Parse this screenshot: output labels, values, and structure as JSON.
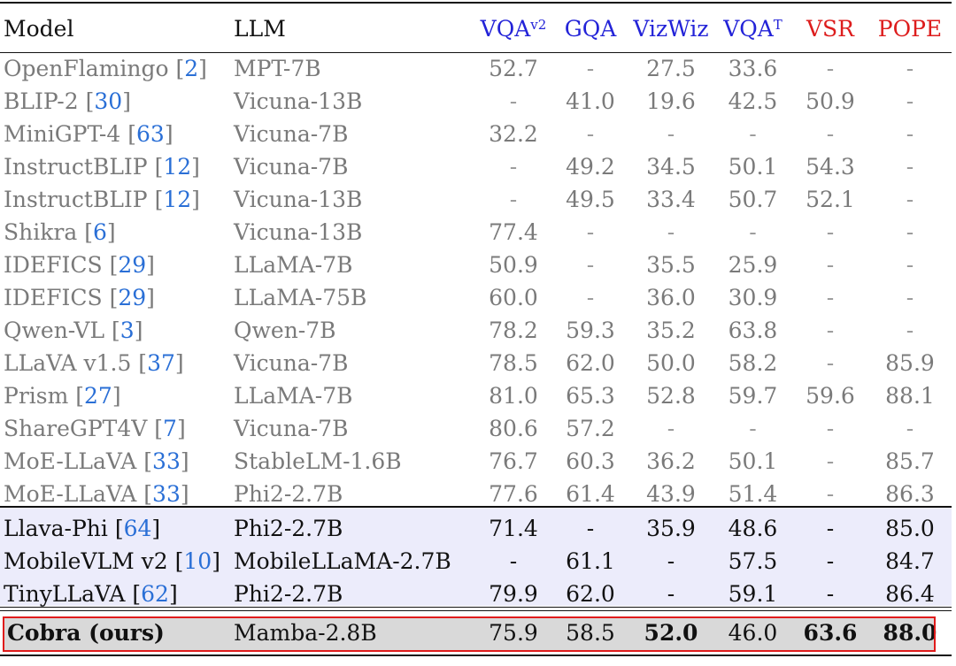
{
  "header": {
    "model": "Model",
    "llm": "LLM",
    "vqa_base": "VQA",
    "vqa_sup": "v2",
    "gqa": "GQA",
    "vizwiz": "VizWiz",
    "vqat_base": "VQA",
    "vqat_sup": "T",
    "vsr": "VSR",
    "pope": "POPE"
  },
  "colors": {
    "blue_header": "#2323d8",
    "red_header": "#dd1d1d",
    "citation": "#2a6fd6",
    "highlight_band": "#ececfb",
    "ours_border": "#e01b1b"
  },
  "rows": [
    {
      "name": "OpenFlamingo ",
      "cite": "2",
      "llm": "MPT-7B",
      "vqa": "52.7",
      "gqa": "-",
      "viz": "27.5",
      "vqat": "33.6",
      "vsr": "-",
      "pope": "-"
    },
    {
      "name": "BLIP-2 ",
      "cite": "30",
      "llm": "Vicuna-13B",
      "vqa": "-",
      "gqa": "41.0",
      "viz": "19.6",
      "vqat": "42.5",
      "vsr": "50.9",
      "pope": "-"
    },
    {
      "name": "MiniGPT-4 ",
      "cite": "63",
      "llm": "Vicuna-7B",
      "vqa": "32.2",
      "gqa": "-",
      "viz": "-",
      "vqat": "-",
      "vsr": "-",
      "pope": "-"
    },
    {
      "name": "InstructBLIP ",
      "cite": "12",
      "llm": "Vicuna-7B",
      "vqa": "-",
      "gqa": "49.2",
      "viz": "34.5",
      "vqat": "50.1",
      "vsr": "54.3",
      "pope": "-"
    },
    {
      "name": "InstructBLIP ",
      "cite": "12",
      "llm": "Vicuna-13B",
      "vqa": "-",
      "gqa": "49.5",
      "viz": "33.4",
      "vqat": "50.7",
      "vsr": "52.1",
      "pope": "-"
    },
    {
      "name": "Shikra ",
      "cite": "6",
      "llm": "Vicuna-13B",
      "vqa": "77.4",
      "gqa": "-",
      "viz": "-",
      "vqat": "-",
      "vsr": "-",
      "pope": "-"
    },
    {
      "name": "IDEFICS ",
      "cite": "29",
      "llm": "LLaMA-7B",
      "vqa": "50.9",
      "gqa": "-",
      "viz": "35.5",
      "vqat": "25.9",
      "vsr": "-",
      "pope": "-"
    },
    {
      "name": "IDEFICS ",
      "cite": "29",
      "llm": "LLaMA-75B",
      "vqa": "60.0",
      "gqa": "-",
      "viz": "36.0",
      "vqat": "30.9",
      "vsr": "-",
      "pope": "-"
    },
    {
      "name": "Qwen-VL ",
      "cite": "3",
      "llm": "Qwen-7B",
      "vqa": "78.2",
      "gqa": "59.3",
      "viz": "35.2",
      "vqat": "63.8",
      "vsr": "-",
      "pope": "-"
    },
    {
      "name": "LLaVA v1.5 ",
      "cite": "37",
      "llm": "Vicuna-7B",
      "vqa": "78.5",
      "gqa": "62.0",
      "viz": "50.0",
      "vqat": "58.2",
      "vsr": "-",
      "pope": "85.9"
    },
    {
      "name": "Prism ",
      "cite": "27",
      "llm": "LLaMA-7B",
      "vqa": "81.0",
      "gqa": "65.3",
      "viz": "52.8",
      "vqat": "59.7",
      "vsr": "59.6",
      "pope": "88.1"
    },
    {
      "name": "ShareGPT4V ",
      "cite": "7",
      "llm": "Vicuna-7B",
      "vqa": "80.6",
      "gqa": "57.2",
      "viz": "-",
      "vqat": "-",
      "vsr": "-",
      "pope": "-"
    },
    {
      "name": "MoE-LLaVA ",
      "cite": "33",
      "llm": "StableLM-1.6B",
      "vqa": "76.7",
      "gqa": "60.3",
      "viz": "36.2",
      "vqat": "50.1",
      "vsr": "-",
      "pope": "85.7"
    },
    {
      "name": "MoE-LLaVA ",
      "cite": "33",
      "llm": "Phi2-2.7B",
      "vqa": "77.6",
      "gqa": "61.4",
      "viz": "43.9",
      "vqat": "51.4",
      "vsr": "-",
      "pope": "86.3"
    },
    {
      "name": "Llava-Phi ",
      "cite": "64",
      "llm": "Phi2-2.7B",
      "vqa": "71.4",
      "gqa": "-",
      "viz": "35.9",
      "vqat": "48.6",
      "vsr": "-",
      "pope": "85.0"
    },
    {
      "name": "MobileVLM v2 ",
      "cite": "10",
      "llm": "MobileLLaMA-2.7B",
      "vqa": "-",
      "gqa": "61.1",
      "viz": "-",
      "vqat": "57.5",
      "vsr": "-",
      "pope": "84.7"
    },
    {
      "name": "TinyLLaVA ",
      "cite": "62",
      "llm": "Phi2-2.7B",
      "vqa": "79.9",
      "gqa": "62.0",
      "viz": "-",
      "vqat": "59.1",
      "vsr": "-",
      "pope": "86.4"
    }
  ],
  "ours": {
    "name": "Cobra (ours)",
    "llm": "Mamba-2.8B",
    "vqa": "75.9",
    "gqa": "58.5",
    "viz": "52.0",
    "vqat": "46.0",
    "vsr": "63.6",
    "pope": "88.0"
  }
}
